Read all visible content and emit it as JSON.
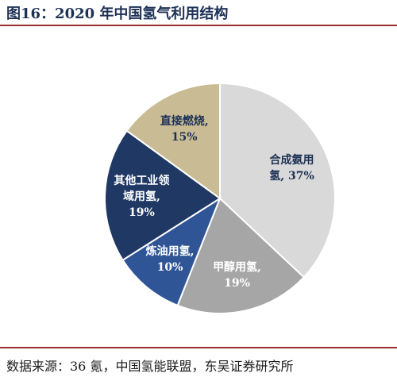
{
  "header": {
    "title": "图16：2020 年中国氢气利用结构"
  },
  "chart_data": {
    "type": "pie",
    "title": "图16：2020 年中国氢气利用结构",
    "start_angle_deg": 0,
    "direction": "clockwise",
    "slices": [
      {
        "label_lines": [
          "合成氨用",
          "氢, 37%"
        ],
        "category": "合成氨用氢",
        "value": 37,
        "color": "#d9d9d9",
        "text_color": "#1d3155"
      },
      {
        "label_lines": [
          "甲醇用氢,",
          "19%"
        ],
        "category": "甲醇用氢",
        "value": 19,
        "color": "#a6a6a6",
        "text_color": "#ffffff"
      },
      {
        "label_lines": [
          "炼油用氢,",
          "10%"
        ],
        "category": "炼油用氢",
        "value": 10,
        "color": "#2f5597",
        "text_color": "#ffffff"
      },
      {
        "label_lines": [
          "其他工业领",
          "域用氢,",
          "19%"
        ],
        "category": "其他工业领域用氢",
        "value": 19,
        "color": "#1f3864",
        "text_color": "#ffffff"
      },
      {
        "label_lines": [
          "直接燃烧,",
          "15%"
        ],
        "category": "直接燃烧",
        "value": 15,
        "color": "#c9bc94",
        "text_color": "#1d3155"
      }
    ]
  },
  "footer": {
    "source": "数据来源：36 氪，中国氢能联盟，东吴证券研究所"
  }
}
